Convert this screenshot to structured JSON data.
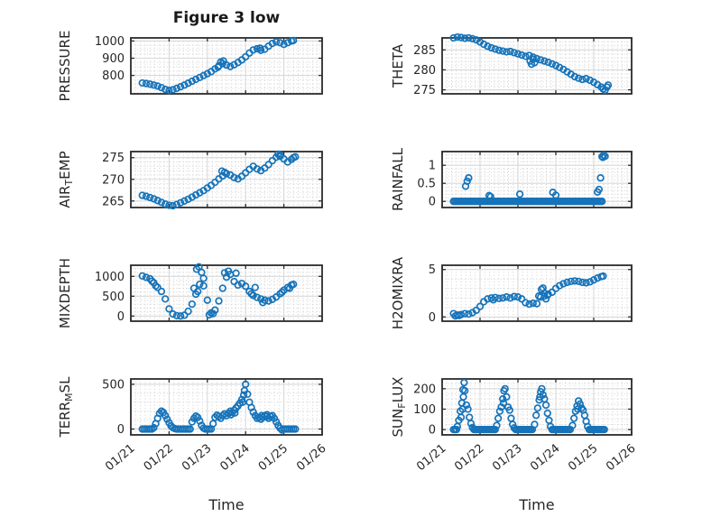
{
  "title": "Figure 3 low",
  "xlabel": "Time",
  "colors": {
    "marker": "#1673b9",
    "frame": "#2b2b2b",
    "text": "#262626",
    "grid_major": "#d8d8d8",
    "grid_minor": "#cfcfcf",
    "background": "#ffffff"
  },
  "x_axis": {
    "lim": [
      0,
      5
    ],
    "tick_values": [
      0,
      1,
      2,
      3,
      4,
      5
    ],
    "tick_labels": [
      "01/21",
      "01/22",
      "01/23",
      "01/24",
      "01/25",
      "01/26"
    ],
    "minor_step": 0.125
  },
  "chart_data": [
    {
      "type": "scatter",
      "name": "pressure",
      "ylabel": {
        "pre": "PRESSURE",
        "sub": "",
        "post": ""
      },
      "ylim": [
        693,
        1018
      ],
      "ytick_values": [
        800,
        900,
        1000
      ],
      "ytick_labels": [
        "800",
        "900",
        "1000"
      ],
      "y_minor_step": 25,
      "x0": 0.3,
      "dx": 0.1,
      "y_values": [
        756,
        753,
        749,
        744,
        738,
        729,
        719,
        713,
        717,
        725,
        734,
        744,
        755,
        766,
        777,
        788,
        799,
        810,
        822,
        838,
        856,
        868,
        860,
        852,
        862,
        875,
        890,
        908,
        930,
        948,
        955,
        946,
        952,
        970,
        986,
        995,
        990,
        980,
        990,
        1000
      ],
      "points": [
        [
          4.25,
          1003
        ],
        [
          2.35,
          878
        ],
        [
          2.42,
          884
        ],
        [
          2.28,
          848
        ],
        [
          3.38,
          958
        ]
      ]
    },
    {
      "type": "scatter",
      "name": "theta",
      "ylabel": {
        "pre": "THETA",
        "sub": "",
        "post": ""
      },
      "ylim": [
        274,
        288
      ],
      "ytick_values": [
        275,
        280,
        285
      ],
      "ytick_labels": [
        "275",
        "280",
        "285"
      ],
      "y_minor_step": 1,
      "x0": 0.3,
      "dx": 0.1,
      "y_values": [
        288.0,
        288.2,
        288.1,
        287.9,
        288.0,
        287.8,
        287.5,
        287.0,
        286.4,
        285.9,
        285.5,
        285.2,
        284.9,
        284.7,
        284.5,
        284.6,
        284.3,
        284.0,
        283.7,
        283.4,
        283.6,
        283.2,
        282.8,
        282.5,
        282.2,
        281.9,
        281.5,
        281.1,
        280.6,
        280.1,
        279.5,
        278.9,
        278.3,
        277.9,
        277.6,
        277.8,
        277.4,
        276.9,
        276.3,
        275.7
      ],
      "points": [
        [
          4.25,
          275.2
        ],
        [
          4.3,
          274.9
        ],
        [
          4.35,
          275.7
        ],
        [
          4.38,
          276.2
        ],
        [
          2.32,
          282.2
        ],
        [
          2.36,
          281.4
        ],
        [
          2.4,
          282.7
        ],
        [
          2.44,
          281.8
        ]
      ]
    },
    {
      "type": "scatter",
      "name": "air-temp",
      "ylabel": {
        "pre": "AIR",
        "sub": "T",
        "post": "EMP"
      },
      "ylim": [
        263.5,
        276.4
      ],
      "ytick_values": [
        265,
        270,
        275
      ],
      "ytick_labels": [
        "265",
        "270",
        "275"
      ],
      "y_minor_step": 1,
      "x0": 0.3,
      "dx": 0.1,
      "y_values": [
        266.3,
        266.1,
        265.8,
        265.5,
        265.1,
        264.7,
        264.3,
        264.0,
        263.9,
        264.2,
        264.6,
        265.0,
        265.4,
        265.9,
        266.4,
        266.9,
        267.4,
        268.0,
        268.6,
        269.3,
        270.1,
        270.8,
        271.3,
        271.0,
        270.4,
        270.1,
        270.7,
        271.5,
        272.3,
        273.0,
        272.4,
        272.0,
        272.6,
        273.4,
        274.3,
        275.1,
        275.6,
        274.7,
        274.0,
        274.6
      ],
      "points": [
        [
          4.25,
          275.0
        ],
        [
          4.3,
          275.2
        ],
        [
          2.45,
          271.6
        ],
        [
          2.38,
          271.9
        ],
        [
          3.85,
          275.8
        ],
        [
          3.9,
          275.3
        ]
      ]
    },
    {
      "type": "scatter",
      "name": "rainfall",
      "ylabel": {
        "pre": "RAINFALL",
        "sub": "",
        "post": ""
      },
      "ylim": [
        -0.17,
        1.38
      ],
      "ytick_values": [
        0,
        0.5,
        1
      ],
      "ytick_labels": [
        "0",
        "0.5",
        "1"
      ],
      "y_minor_step": 0.1,
      "points": [
        [
          0.62,
          0.42
        ],
        [
          0.66,
          0.56
        ],
        [
          0.7,
          0.65
        ],
        [
          1.24,
          0.16
        ],
        [
          1.28,
          0.13
        ],
        [
          2.05,
          0.2
        ],
        [
          2.92,
          0.25
        ],
        [
          3.0,
          0.17
        ],
        [
          4.1,
          0.26
        ],
        [
          4.14,
          0.33
        ],
        [
          4.18,
          0.65
        ],
        [
          4.22,
          1.24
        ],
        [
          4.26,
          1.28
        ],
        [
          4.3,
          1.25
        ],
        [
          4.24,
          1.22
        ]
      ],
      "zero_runs": [
        {
          "from": 0.3,
          "to": 4.25,
          "step": 0.04,
          "y": 0
        }
      ]
    },
    {
      "type": "scatter",
      "name": "mixdepth",
      "ylabel": {
        "pre": "MIXDEPTH",
        "sub": "",
        "post": ""
      },
      "ylim": [
        -130,
        1280
      ],
      "ytick_values": [
        0,
        500,
        1000
      ],
      "ytick_labels": [
        "0",
        "500",
        "1000"
      ],
      "y_minor_step": 100,
      "x0": 0.3,
      "dx": 0.1,
      "y_values": [
        1010,
        975,
        940,
        840,
        720,
        620,
        430,
        180,
        50,
        10,
        0,
        20,
        120,
        300,
        550,
        800,
        950,
        400,
        80,
        150,
        380,
        700,
        980,
        1050,
        870,
        780,
        820,
        750,
        620,
        520,
        470,
        430,
        400,
        380,
        420,
        480,
        560,
        650,
        720,
        780
      ],
      "points": [
        [
          4.25,
          800
        ],
        [
          1.72,
          1180
        ],
        [
          1.78,
          1240
        ],
        [
          1.85,
          1100
        ],
        [
          1.65,
          700
        ],
        [
          1.75,
          620
        ],
        [
          1.9,
          760
        ],
        [
          2.45,
          1090
        ],
        [
          2.55,
          1130
        ],
        [
          2.75,
          1080
        ],
        [
          2.05,
          30
        ],
        [
          2.15,
          60
        ],
        [
          3.25,
          720
        ],
        [
          3.15,
          560
        ],
        [
          3.45,
          340
        ],
        [
          0.55,
          880
        ],
        [
          0.65,
          760
        ],
        [
          4.15,
          700
        ],
        [
          3.95,
          600
        ]
      ]
    },
    {
      "type": "scatter",
      "name": "h2omixra",
      "ylabel": {
        "pre": "H2OMIXRA",
        "sub": "",
        "post": ""
      },
      "ylim": [
        -0.45,
        5.45
      ],
      "ytick_values": [
        0,
        5
      ],
      "ytick_labels": [
        "0",
        "5"
      ],
      "y_minor_step": 1,
      "x0": 0.3,
      "dx": 0.1,
      "y_values": [
        0.35,
        0.2,
        0.25,
        0.35,
        0.3,
        0.45,
        0.7,
        1.1,
        1.6,
        1.9,
        2.0,
        2.05,
        1.95,
        2.0,
        2.1,
        2.0,
        2.15,
        2.1,
        1.9,
        1.5,
        1.35,
        1.45,
        1.4,
        2.1,
        2.5,
        2.4,
        2.6,
        3.0,
        3.3,
        3.5,
        3.65,
        3.75,
        3.8,
        3.75,
        3.65,
        3.6,
        3.7,
        3.9,
        4.1,
        4.25
      ],
      "points": [
        [
          4.25,
          4.3
        ],
        [
          2.62,
          2.9
        ],
        [
          2.66,
          3.05
        ],
        [
          2.7,
          2.2
        ],
        [
          2.74,
          1.9
        ],
        [
          2.78,
          2.3
        ],
        [
          0.35,
          0.1
        ],
        [
          0.45,
          0.15
        ],
        [
          1.35,
          1.8
        ],
        [
          2.55,
          2.2
        ]
      ]
    },
    {
      "type": "scatter",
      "name": "terr-msl",
      "ylabel": {
        "pre": "TERR",
        "sub": "M",
        "post": "SL"
      },
      "ylim": [
        -65,
        560
      ],
      "ytick_values": [
        0,
        500
      ],
      "ytick_labels": [
        "0",
        "500"
      ],
      "y_minor_step": 100,
      "points": [
        [
          0.6,
          15
        ],
        [
          0.65,
          60
        ],
        [
          0.7,
          120
        ],
        [
          0.75,
          175
        ],
        [
          0.8,
          200
        ],
        [
          0.85,
          185
        ],
        [
          0.9,
          150
        ],
        [
          0.95,
          110
        ],
        [
          1.0,
          70
        ],
        [
          1.05,
          35
        ],
        [
          1.1,
          15
        ],
        [
          1.15,
          5
        ],
        [
          1.6,
          80
        ],
        [
          1.65,
          120
        ],
        [
          1.7,
          145
        ],
        [
          1.75,
          130
        ],
        [
          1.8,
          90
        ],
        [
          1.85,
          40
        ],
        [
          1.9,
          10
        ],
        [
          2.15,
          60
        ],
        [
          2.2,
          130
        ],
        [
          2.25,
          155
        ],
        [
          2.3,
          140
        ],
        [
          2.35,
          120
        ],
        [
          2.4,
          150
        ],
        [
          2.45,
          170
        ],
        [
          2.5,
          150
        ],
        [
          2.55,
          175
        ],
        [
          2.6,
          200
        ],
        [
          2.65,
          185
        ],
        [
          2.7,
          210
        ],
        [
          2.75,
          235
        ],
        [
          2.8,
          260
        ],
        [
          2.85,
          290
        ],
        [
          2.9,
          330
        ],
        [
          2.95,
          380
        ],
        [
          3.0,
          500
        ],
        [
          3.05,
          390
        ],
        [
          3.1,
          300
        ],
        [
          3.15,
          240
        ],
        [
          3.2,
          190
        ],
        [
          3.25,
          150
        ],
        [
          3.3,
          120
        ],
        [
          3.35,
          130
        ],
        [
          3.4,
          110
        ],
        [
          3.45,
          130
        ],
        [
          3.5,
          150
        ],
        [
          3.55,
          140
        ],
        [
          3.6,
          120
        ],
        [
          3.65,
          140
        ],
        [
          3.7,
          150
        ],
        [
          3.75,
          120
        ],
        [
          3.8,
          80
        ],
        [
          3.85,
          40
        ],
        [
          3.9,
          10
        ],
        [
          3.95,
          -10
        ],
        [
          2.97,
          430
        ],
        [
          2.92,
          300
        ],
        [
          2.62,
          160
        ],
        [
          2.72,
          180
        ],
        [
          3.42,
          150
        ],
        [
          3.56,
          160
        ]
      ],
      "zero_runs": [
        {
          "from": 0.3,
          "to": 0.55,
          "step": 0.05,
          "y": 0
        },
        {
          "from": 1.2,
          "to": 1.55,
          "step": 0.05,
          "y": 0
        },
        {
          "from": 1.95,
          "to": 2.1,
          "step": 0.05,
          "y": 0
        },
        {
          "from": 4.0,
          "to": 4.3,
          "step": 0.05,
          "y": 0
        }
      ]
    },
    {
      "type": "scatter",
      "name": "sun-flux",
      "ylabel": {
        "pre": "SUN",
        "sub": "F",
        "post": "LUX"
      },
      "ylim": [
        -26,
        248
      ],
      "ytick_values": [
        0,
        100,
        200
      ],
      "ytick_labels": [
        "0",
        "100",
        "200"
      ],
      "y_minor_step": 25,
      "points": [
        [
          0.4,
          15
        ],
        [
          0.44,
          45
        ],
        [
          0.48,
          90
        ],
        [
          0.52,
          130
        ],
        [
          0.55,
          195
        ],
        [
          0.58,
          230
        ],
        [
          0.6,
          190
        ],
        [
          0.64,
          120
        ],
        [
          0.68,
          100
        ],
        [
          0.72,
          60
        ],
        [
          0.76,
          30
        ],
        [
          0.8,
          10
        ],
        [
          1.44,
          20
        ],
        [
          1.48,
          55
        ],
        [
          1.52,
          90
        ],
        [
          1.56,
          110
        ],
        [
          1.6,
          150
        ],
        [
          1.63,
          190
        ],
        [
          1.66,
          200
        ],
        [
          1.7,
          160
        ],
        [
          1.74,
          110
        ],
        [
          1.78,
          95
        ],
        [
          1.82,
          55
        ],
        [
          1.86,
          25
        ],
        [
          1.9,
          8
        ],
        [
          2.44,
          25
        ],
        [
          2.48,
          70
        ],
        [
          2.52,
          105
        ],
        [
          2.56,
          145
        ],
        [
          2.6,
          185
        ],
        [
          2.63,
          200
        ],
        [
          2.66,
          170
        ],
        [
          2.7,
          150
        ],
        [
          2.74,
          120
        ],
        [
          2.78,
          80
        ],
        [
          2.82,
          45
        ],
        [
          2.86,
          15
        ],
        [
          3.44,
          20
        ],
        [
          3.48,
          55
        ],
        [
          3.52,
          90
        ],
        [
          3.56,
          115
        ],
        [
          3.6,
          140
        ],
        [
          3.64,
          125
        ],
        [
          3.68,
          105
        ],
        [
          3.72,
          95
        ],
        [
          3.76,
          70
        ],
        [
          3.8,
          40
        ],
        [
          3.84,
          15
        ],
        [
          0.56,
          160
        ],
        [
          0.54,
          100
        ],
        [
          0.5,
          60
        ],
        [
          1.62,
          130
        ],
        [
          2.58,
          160
        ],
        [
          3.58,
          100
        ]
      ],
      "zero_runs": [
        {
          "from": 0.3,
          "to": 0.38,
          "step": 0.04,
          "y": 0
        },
        {
          "from": 0.84,
          "to": 1.4,
          "step": 0.04,
          "y": 0
        },
        {
          "from": 1.94,
          "to": 2.4,
          "step": 0.04,
          "y": 0
        },
        {
          "from": 2.9,
          "to": 3.4,
          "step": 0.04,
          "y": 0
        },
        {
          "from": 3.88,
          "to": 4.28,
          "step": 0.04,
          "y": 0
        }
      ]
    }
  ]
}
